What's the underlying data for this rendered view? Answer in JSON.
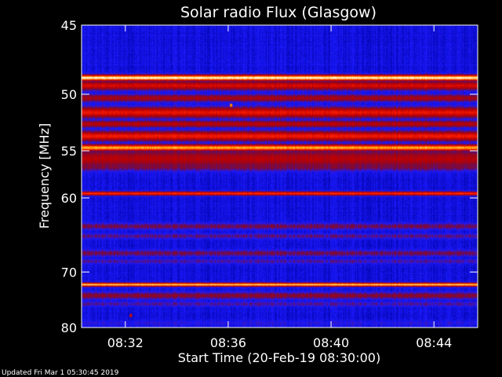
{
  "chart_data": {
    "type": "heatmap",
    "title": "Solar radio Flux (Glasgow)",
    "xlabel": "Start Time (20-Feb-19 08:30:00)",
    "ylabel": "Frequency [MHz]",
    "x_unit": "minutes after 08:30:00",
    "xlim": [
      0.3,
      15.7
    ],
    "ylim": [
      45,
      80
    ],
    "y_scale": "reciprocal",
    "x_ticks": [
      {
        "value": 2,
        "label": "08:32"
      },
      {
        "value": 6,
        "label": "08:36"
      },
      {
        "value": 10,
        "label": "08:40"
      },
      {
        "value": 14,
        "label": "08:44"
      }
    ],
    "y_ticks": [
      {
        "value": 45,
        "label": "45"
      },
      {
        "value": 50,
        "label": "50"
      },
      {
        "value": 55,
        "label": "55"
      },
      {
        "value": 60,
        "label": "60"
      },
      {
        "value": 70,
        "label": "70"
      },
      {
        "value": 80,
        "label": "80"
      }
    ],
    "colormap": [
      "#00003a",
      "#0000a0",
      "#1a1aff",
      "#7a0a3a",
      "#c00000",
      "#ff2000",
      "#ffa000",
      "#ffffff"
    ],
    "background_level": 0.23,
    "bands": [
      {
        "f": 45.2,
        "width": 0.35,
        "level": 0.16
      },
      {
        "f": 45.8,
        "width": 0.5,
        "level": 0.12
      },
      {
        "f": 48.7,
        "width": 0.22,
        "level": 0.98
      },
      {
        "f": 49.3,
        "width": 0.35,
        "level": 0.62
      },
      {
        "f": 50.3,
        "width": 0.3,
        "level": 0.52
      },
      {
        "f": 51.5,
        "width": 0.45,
        "level": 0.66
      },
      {
        "f": 52.5,
        "width": 0.3,
        "level": 0.56
      },
      {
        "f": 53.6,
        "width": 0.45,
        "level": 0.68
      },
      {
        "f": 54.7,
        "width": 0.3,
        "level": 0.88
      },
      {
        "f": 55.8,
        "width": 0.9,
        "level": 0.55
      },
      {
        "f": 56.6,
        "width": 0.45,
        "level": 0.44
      },
      {
        "f": 59.5,
        "width": 0.22,
        "level": 0.72
      },
      {
        "f": 63.5,
        "width": 0.4,
        "level": 0.42
      },
      {
        "f": 64.8,
        "width": 0.35,
        "level": 0.38
      },
      {
        "f": 67.2,
        "width": 0.45,
        "level": 0.42
      },
      {
        "f": 68.4,
        "width": 0.35,
        "level": 0.36
      },
      {
        "f": 72.1,
        "width": 0.3,
        "level": 0.92
      },
      {
        "f": 74.0,
        "width": 0.6,
        "level": 0.46
      },
      {
        "f": 75.5,
        "width": 0.45,
        "level": 0.36
      },
      {
        "f": 79.2,
        "width": 0.6,
        "level": 0.3
      }
    ],
    "spots": [
      {
        "t": 6.1,
        "f": 50.9,
        "level": 0.82
      },
      {
        "t": 2.2,
        "f": 77.6,
        "level": 0.62
      }
    ],
    "grid": false,
    "legend": "none"
  },
  "footer": {
    "updated": "Updated Fri Mar  1 05:30:45 2019"
  }
}
